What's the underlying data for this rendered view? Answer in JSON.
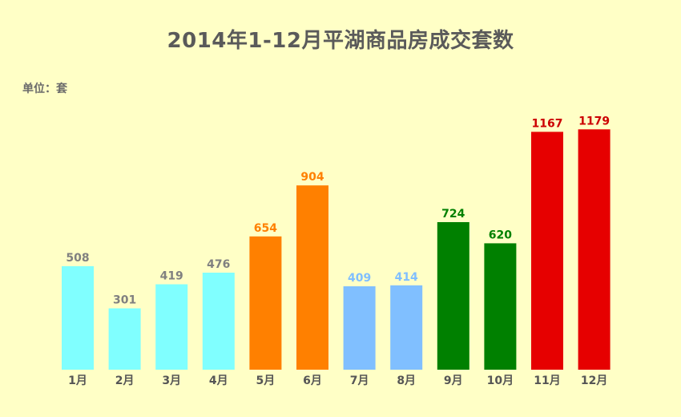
{
  "chart_data": {
    "type": "bar",
    "title": "2014年1-12月平湖商品房成交套数",
    "unit": "单位：套",
    "categories": [
      "1月",
      "2月",
      "3月",
      "4月",
      "5月",
      "6月",
      "7月",
      "8月",
      "9月",
      "10月",
      "11月",
      "12月"
    ],
    "values": [
      508,
      301,
      419,
      476,
      654,
      904,
      409,
      414,
      724,
      620,
      1167,
      1179
    ],
    "bar_colors": [
      "#80ffff",
      "#80ffff",
      "#80ffff",
      "#80ffff",
      "#ff8000",
      "#ff8000",
      "#80bfff",
      "#80bfff",
      "#008000",
      "#008000",
      "#e60000",
      "#e60000"
    ],
    "label_colors": [
      "#808080",
      "#808080",
      "#808080",
      "#808080",
      "#ff8000",
      "#ff8000",
      "#80bfff",
      "#80bfff",
      "#008000",
      "#008000",
      "#cc0000",
      "#cc0000"
    ],
    "ylim": [
      0,
      1200
    ],
    "xlabel": "",
    "ylabel": "",
    "grid": false,
    "background": "#ffffc6"
  }
}
